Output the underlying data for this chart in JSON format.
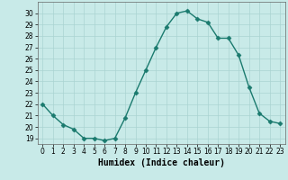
{
  "x": [
    0,
    1,
    2,
    3,
    4,
    5,
    6,
    7,
    8,
    9,
    10,
    11,
    12,
    13,
    14,
    15,
    16,
    17,
    18,
    19,
    20,
    21,
    22,
    23
  ],
  "y": [
    22,
    21,
    20.2,
    19.8,
    19,
    19,
    18.8,
    19,
    20.8,
    23,
    25,
    27,
    28.8,
    30,
    30.2,
    29.5,
    29.2,
    27.8,
    27.8,
    26.3,
    23.5,
    21.2,
    20.5,
    20.3
  ],
  "line_color": "#1a7a6e",
  "marker": "D",
  "marker_size": 2.5,
  "bg_color": "#c8eae8",
  "grid_color": "#aad4d2",
  "xlabel": "Humidex (Indice chaleur)",
  "ylabel": "",
  "ylim": [
    18.5,
    31
  ],
  "xlim": [
    -0.5,
    23.5
  ],
  "yticks": [
    19,
    20,
    21,
    22,
    23,
    24,
    25,
    26,
    27,
    28,
    29,
    30
  ],
  "xticks": [
    0,
    1,
    2,
    3,
    4,
    5,
    6,
    7,
    8,
    9,
    10,
    11,
    12,
    13,
    14,
    15,
    16,
    17,
    18,
    19,
    20,
    21,
    22,
    23
  ],
  "tick_fontsize": 5.5,
  "xlabel_fontsize": 7,
  "line_width": 1.0
}
